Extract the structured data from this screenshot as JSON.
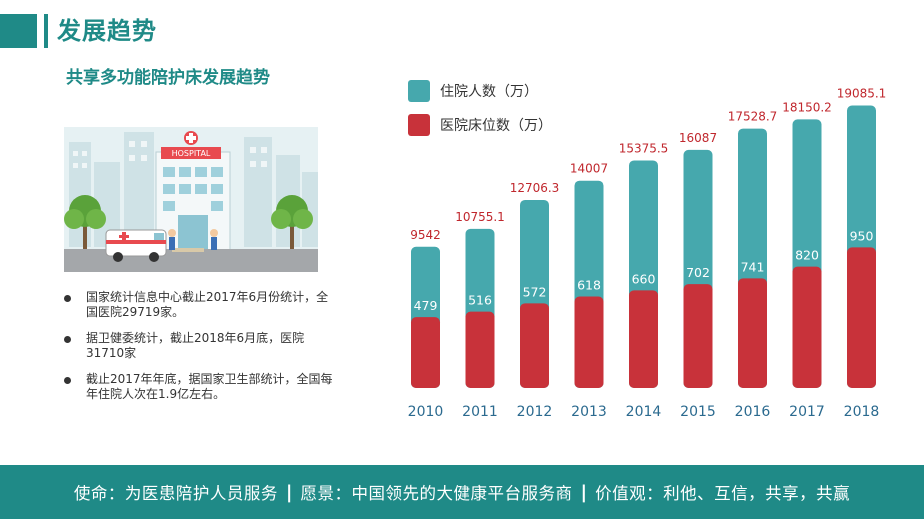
{
  "header": {
    "title": "发展趋势"
  },
  "subtitle": "共享多功能陪护床发展趋势",
  "illustration": {
    "sign_text": "HOSPITAL"
  },
  "bullets": [
    "国家统计信息中心截止2017年6月份统计，全国医院29719家。",
    "据卫健委统计，截止2018年6月底，医院31710家",
    "截止2017年年底，据国家卫生部统计，全国每年住院人次在1.9亿左右。"
  ],
  "colors": {
    "teal": "#46a8ad",
    "red": "#c8323a",
    "brand": "#1f8a87",
    "label_red": "#c0272d"
  },
  "chart_data": {
    "type": "bar",
    "categories": [
      "2010",
      "2011",
      "2012",
      "2013",
      "2014",
      "2015",
      "2016",
      "2017",
      "2018"
    ],
    "series": [
      {
        "name": "住院人数（万）",
        "values": [
          9542,
          10755.1,
          12706.3,
          14007,
          15375.5,
          16087,
          17528.7,
          18150.2,
          19085.1
        ],
        "labels": [
          "9542",
          "10755.1",
          "12706.3",
          "14007",
          "15375.5",
          "16087",
          "17528.7",
          "18150.2",
          "19085.1"
        ]
      },
      {
        "name": "医院床位数（万）",
        "values": [
          479,
          516,
          572,
          618,
          660,
          702,
          741,
          820,
          950
        ],
        "labels": [
          "479",
          "516",
          "572",
          "618",
          "660",
          "702",
          "741",
          "820",
          "950"
        ]
      }
    ],
    "legend_position": "top-left",
    "ylim": [
      0,
      20000
    ]
  },
  "footer": {
    "mission": "使命：为医患陪护人员服务",
    "vision": "愿景：中国领先的大健康平台服务商",
    "values": "价值观：利他、互信，共享，共赢",
    "separator": "|"
  }
}
